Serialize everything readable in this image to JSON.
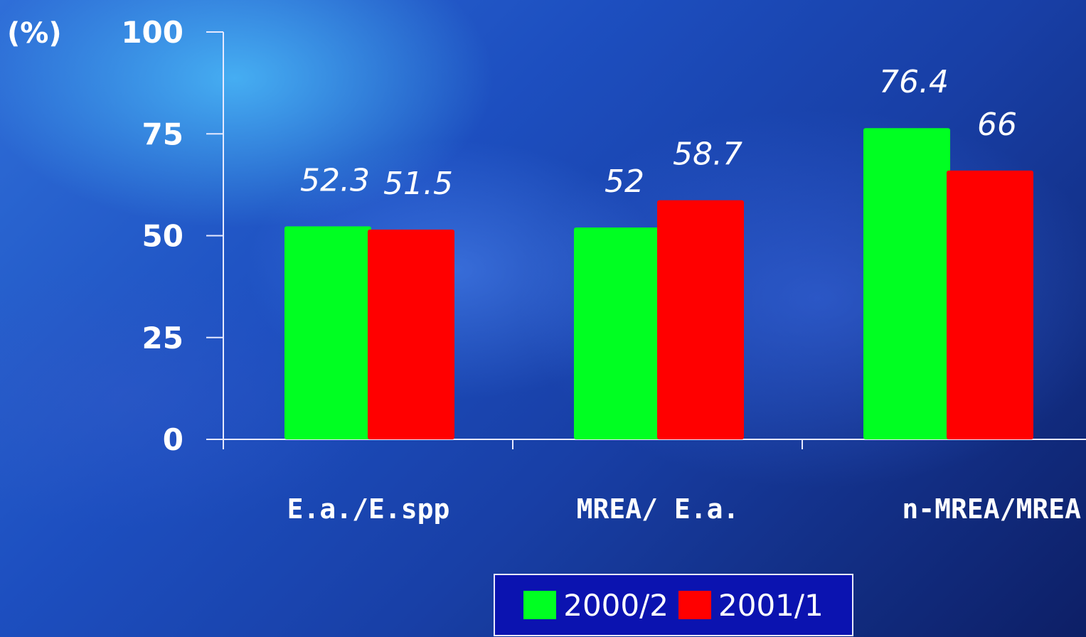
{
  "chart_data": {
    "type": "bar",
    "unit_label": "(%)",
    "categories": [
      "E.a./E.spp",
      "MREA/ E.a.",
      "n-MREA/MREA"
    ],
    "series": [
      {
        "name": "2000/2",
        "color": "#00ff22",
        "values": [
          52.3,
          52,
          76.4
        ],
        "labels": [
          "52.3",
          "52",
          "76.4"
        ]
      },
      {
        "name": "2001/1",
        "color": "#ff0000",
        "values": [
          51.5,
          58.7,
          66
        ],
        "labels": [
          "51.5",
          "58.7",
          "66"
        ]
      }
    ],
    "yticks": [
      "0",
      "25",
      "50",
      "75",
      "100"
    ],
    "ylim": [
      0,
      100
    ],
    "grid": false,
    "legend_position": "bottom"
  }
}
